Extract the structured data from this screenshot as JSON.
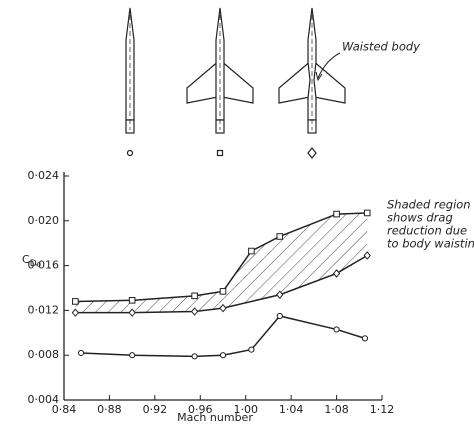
{
  "chart_data": {
    "type": "line",
    "x_label": "Mach number",
    "y_label": [
      "C",
      "D",
      "0"
    ],
    "xlim": [
      0.84,
      1.12
    ],
    "ylim": [
      0.004,
      0.024
    ],
    "xticks": [
      {
        "value": 0.84,
        "label": "0·84"
      },
      {
        "value": 0.88,
        "label": "0·88"
      },
      {
        "value": 0.92,
        "label": "0·92"
      },
      {
        "value": 0.96,
        "label": "0·96"
      },
      {
        "value": 1.0,
        "label": "1·00"
      },
      {
        "value": 1.04,
        "label": "1·04"
      },
      {
        "value": 1.08,
        "label": "1·08"
      },
      {
        "value": 1.12,
        "label": "1·12"
      }
    ],
    "yticks": [
      {
        "value": 0.004,
        "label": "0·004"
      },
      {
        "value": 0.008,
        "label": "0·008"
      },
      {
        "value": 0.012,
        "label": "0·012"
      },
      {
        "value": 0.016,
        "label": "0·016"
      },
      {
        "value": 0.02,
        "label": "0·020"
      },
      {
        "value": 0.024,
        "label": "0·024"
      }
    ],
    "series": [
      {
        "color": "#222",
        "marker": "square",
        "x": [
          0.85,
          0.9,
          0.955,
          0.98,
          1.005,
          1.03,
          1.08,
          1.107
        ],
        "values": [
          0.0128,
          0.0129,
          0.0133,
          0.0137,
          0.0173,
          0.0186,
          0.0206,
          0.0207
        ]
      },
      {
        "color": "#222",
        "marker": "diamond",
        "x": [
          0.85,
          0.9,
          0.955,
          0.98,
          1.03,
          1.08,
          1.107
        ],
        "values": [
          0.0118,
          0.0118,
          0.0119,
          0.0122,
          0.0134,
          0.0153,
          0.0169
        ]
      },
      {
        "color": "#222",
        "marker": "circle",
        "x": [
          0.855,
          0.9,
          0.955,
          0.98,
          1.005,
          1.03,
          1.08,
          1.105
        ],
        "values": [
          0.0082,
          0.008,
          0.0079,
          0.008,
          0.0085,
          0.0115,
          0.0103,
          0.0095
        ]
      }
    ],
    "annotations": [
      "Waisted body",
      [
        "Shaded region",
        "shows drag",
        "reduction due",
        "to body waisting"
      ]
    ]
  }
}
